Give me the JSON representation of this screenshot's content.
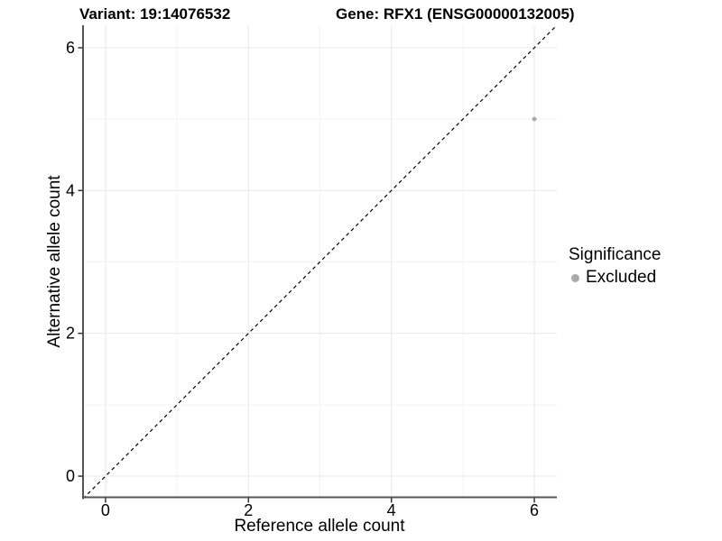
{
  "header": {
    "variant_title": "Variant: 19:14076532",
    "gene_title": "Gene: RFX1 (ENSG00000132005)"
  },
  "chart_data": {
    "type": "scatter",
    "xlabel": "Reference allele count",
    "ylabel": "Alternative allele count",
    "xlim": [
      -0.315,
      6.315
    ],
    "ylim": [
      -0.315,
      6.315
    ],
    "x_ticks": [
      0,
      2,
      4,
      6
    ],
    "y_ticks": [
      0,
      2,
      4,
      6
    ],
    "x_minor_ticks": [
      1,
      3,
      5
    ],
    "y_minor_ticks": [
      1,
      3,
      5
    ],
    "grid": true,
    "points": [
      {
        "x": 6,
        "y": 5,
        "significance": "Excluded",
        "color": "#aaaaaa"
      }
    ],
    "reference_line": {
      "type": "identity",
      "slope": 1,
      "intercept": 0,
      "style": "dashed",
      "color": "#000000"
    }
  },
  "legend": {
    "title": "Significance",
    "position": "right",
    "items": [
      {
        "label": "Excluded",
        "color": "#aaaaaa"
      }
    ]
  },
  "colors": {
    "background": "#ffffff",
    "text": "#000000",
    "axis_line": "#555555",
    "tick_mark": "#333333",
    "grid_major": "#e8e8e8",
    "grid_minor": "#f3f3f3",
    "point": "#aaaaaa"
  }
}
